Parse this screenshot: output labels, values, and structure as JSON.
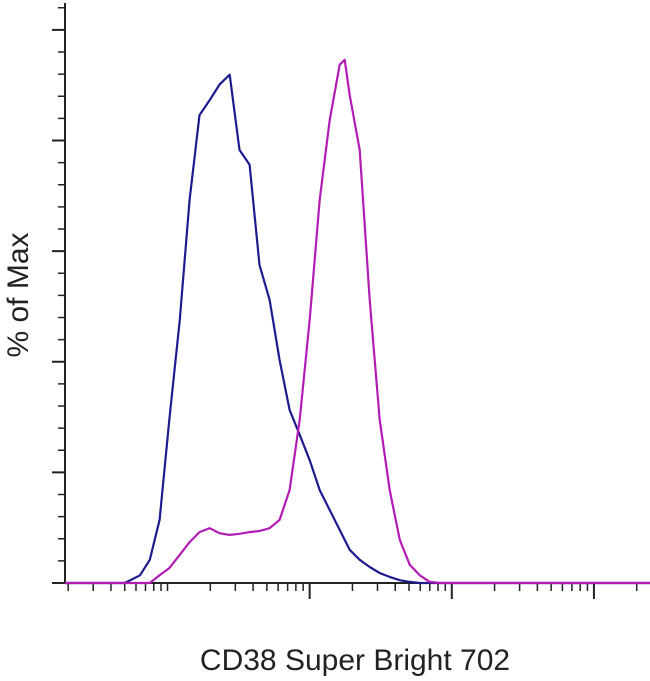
{
  "chart_data": {
    "type": "line",
    "xlabel": "CD38 Super Bright 702",
    "ylabel": "% of Max",
    "x": [
      19,
      50,
      64,
      75,
      88,
      103,
      122,
      143,
      168,
      198,
      232,
      274,
      321,
      378,
      444,
      523,
      615,
      723,
      851,
      1000,
      1176,
      1383,
      1626,
      1763,
      1913,
      2249,
      2647,
      3112,
      3659,
      4305,
      5058,
      5957,
      7000,
      8230,
      248000
    ],
    "series": [
      {
        "color": "#1c1c8e",
        "values": [
          0,
          0,
          1.4,
          4.2,
          11.4,
          29.5,
          47.6,
          69.3,
          84.6,
          87.3,
          90.1,
          91.9,
          78.3,
          75.6,
          57.5,
          51.2,
          40.3,
          31.3,
          26.8,
          22.2,
          16.8,
          13.2,
          9.6,
          7.8,
          6.0,
          4.2,
          2.9,
          1.8,
          1.1,
          0.5,
          0.2,
          0,
          0,
          0,
          0
        ]
      },
      {
        "color": "#b21cb4",
        "values": [
          0,
          0,
          0,
          0,
          1.4,
          2.7,
          5.1,
          7.4,
          9.2,
          9.9,
          9.0,
          8.7,
          8.9,
          9.2,
          9.4,
          9.9,
          11.4,
          16.8,
          29.5,
          47.6,
          69.3,
          83.7,
          93.7,
          94.6,
          88.2,
          78.3,
          51.2,
          29.5,
          16.8,
          7.8,
          3.3,
          1.4,
          0.2,
          0,
          0
        ]
      }
    ],
    "xlog": true,
    "xlim": [
      19,
      248000
    ],
    "xticks": [
      1000,
      10000,
      100000
    ],
    "xminorticks": [
      20,
      30,
      40,
      50,
      60,
      70,
      80,
      90,
      100,
      200,
      300,
      400,
      500,
      600,
      700,
      800,
      900,
      2000,
      3000,
      4000,
      5000,
      6000,
      7000,
      8000,
      9000,
      20000,
      30000,
      40000,
      50000,
      60000,
      70000,
      80000,
      90000,
      200000
    ],
    "ylim": [
      0,
      104.5
    ],
    "yticks": [
      0,
      20,
      40,
      60,
      80,
      100
    ],
    "yminorticks": [
      4,
      8,
      12,
      16,
      24,
      28,
      32,
      36,
      44,
      48,
      52,
      56,
      64,
      68,
      72,
      76,
      84,
      88,
      92,
      96,
      104
    ]
  }
}
